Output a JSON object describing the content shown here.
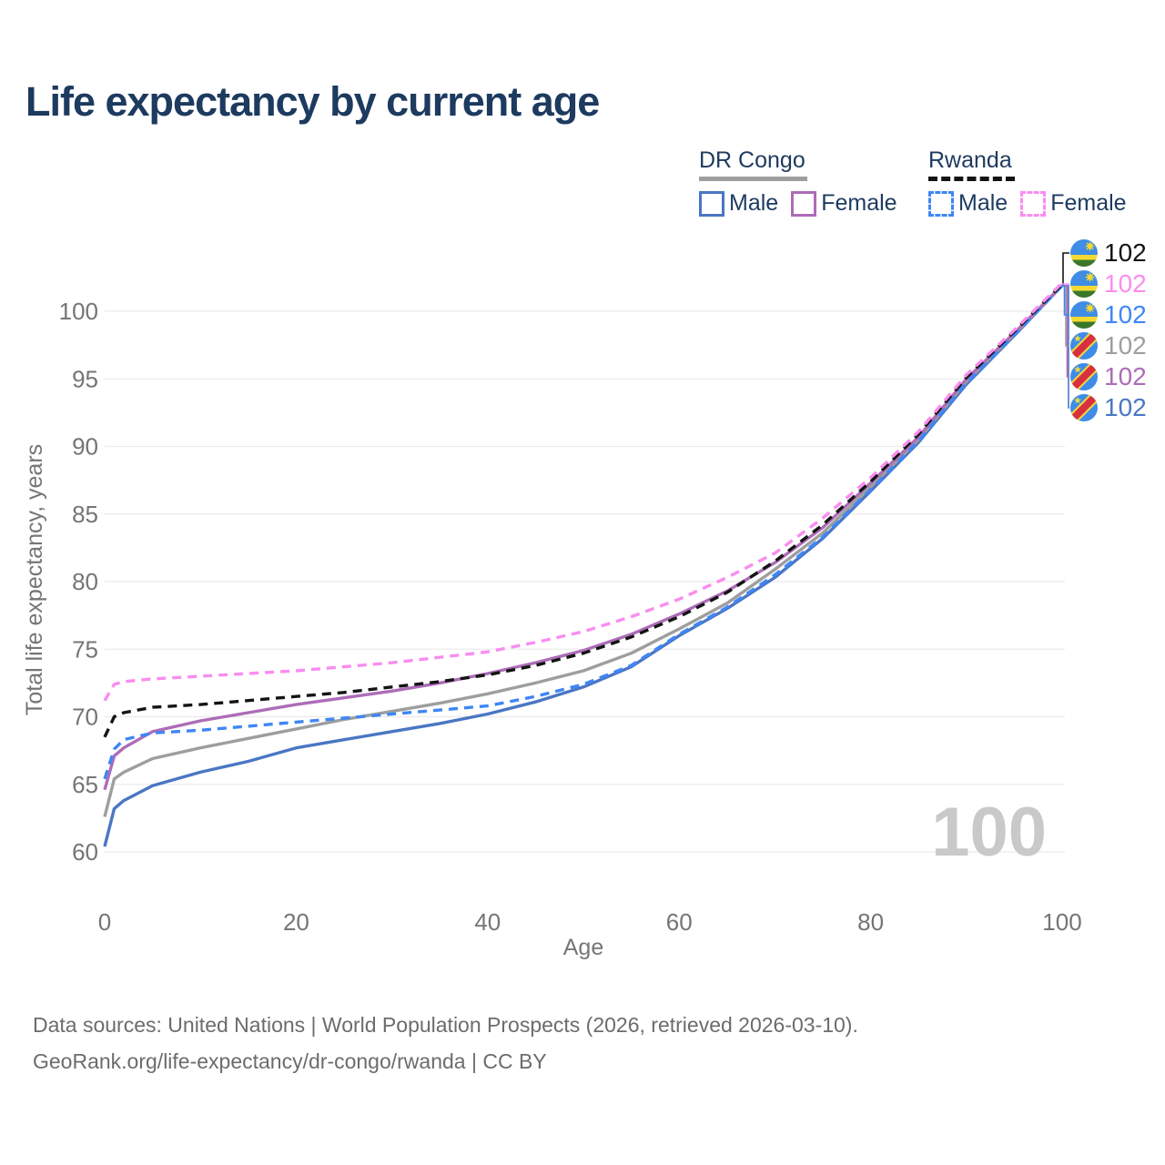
{
  "page": {
    "title": "Life expectancy by current age"
  },
  "colors": {
    "title_text": "#1d3a5f",
    "legend_text": "#1d3a5f",
    "axis_text": "#757575",
    "gridline": "#ebebeb",
    "watermark": "#c9c9c9",
    "footer_text": "#6c6c6c",
    "drc_male": "#4a76c4",
    "drc_female": "#ad6cb8",
    "drc_both": "#9e9e9e",
    "rwanda_male": "#3f86f5",
    "rwanda_female": "#f98df0",
    "rwanda_both": "#141414",
    "flag_rwanda": {
      "blue": "#3f8de5",
      "yellow": "#f5d933",
      "green": "#3a7728"
    },
    "flag_drc": {
      "blue": "#3e8ce8",
      "red": "#d8303f",
      "yellow": "#f3d83b"
    }
  },
  "legend": {
    "groups": [
      {
        "label": "DR Congo",
        "line_style": "solid",
        "line_color_key": "drc_both",
        "items": [
          {
            "label": "Male",
            "color_key": "drc_male",
            "style": "solid"
          },
          {
            "label": "Female",
            "color_key": "drc_female",
            "style": "solid"
          }
        ]
      },
      {
        "label": "Rwanda",
        "line_style": "dashed",
        "line_color_key": "rwanda_both",
        "items": [
          {
            "label": "Male",
            "color_key": "rwanda_male",
            "style": "dashed"
          },
          {
            "label": "Female",
            "color_key": "rwanda_female",
            "style": "dashed"
          }
        ]
      }
    ]
  },
  "chart_data": {
    "type": "line",
    "title": "Life expectancy by current age",
    "xlabel": "Age",
    "ylabel": "Total life expectancy, years",
    "grid": "horizontal",
    "legend_position": "top-right",
    "xlim": [
      0,
      100
    ],
    "ylim": [
      58.5,
      103
    ],
    "xticks": [
      0,
      20,
      40,
      60,
      80,
      100
    ],
    "yticks": [
      60,
      65,
      70,
      75,
      80,
      85,
      90,
      95,
      100
    ],
    "age_counter": "100",
    "x": [
      0,
      1,
      2,
      5,
      10,
      15,
      20,
      25,
      30,
      35,
      40,
      45,
      50,
      55,
      60,
      65,
      70,
      75,
      80,
      85,
      90,
      95,
      100
    ],
    "series": [
      {
        "name": "DR Congo Male",
        "country": "DR Congo",
        "sex": "Male",
        "color_key": "drc_male",
        "dashed": false,
        "flag": "drc",
        "label_row": 5,
        "end_label": "102",
        "values": [
          60.4,
          63.2,
          63.8,
          64.9,
          65.9,
          66.7,
          67.7,
          68.3,
          68.9,
          69.5,
          70.2,
          71.1,
          72.2,
          73.7,
          76.0,
          78.0,
          80.3,
          83.2,
          86.7,
          90.3,
          94.6,
          98.2,
          101.9
        ]
      },
      {
        "name": "DR Congo Both sexes",
        "country": "DR Congo",
        "sex": "Both",
        "color_key": "drc_both",
        "dashed": false,
        "flag": "drc",
        "label_row": 3,
        "end_label": "102",
        "values": [
          62.6,
          65.4,
          65.9,
          66.9,
          67.7,
          68.4,
          69.1,
          69.8,
          70.4,
          71.0,
          71.7,
          72.5,
          73.4,
          74.7,
          76.5,
          78.4,
          80.9,
          83.6,
          87.0,
          90.5,
          94.8,
          98.3,
          101.9
        ]
      },
      {
        "name": "DR Congo Female",
        "country": "DR Congo",
        "sex": "Female",
        "color_key": "drc_female",
        "dashed": false,
        "flag": "drc",
        "label_row": 4,
        "end_label": "102",
        "values": [
          64.6,
          67.1,
          67.7,
          68.9,
          69.7,
          70.3,
          70.9,
          71.4,
          71.9,
          72.5,
          73.2,
          74.0,
          74.9,
          76.1,
          77.6,
          79.3,
          81.4,
          84.0,
          87.3,
          90.7,
          95.0,
          98.4,
          101.9
        ]
      },
      {
        "name": "Rwanda Male",
        "country": "Rwanda",
        "sex": "Male",
        "color_key": "rwanda_male",
        "dashed": true,
        "flag": "rwanda",
        "label_row": 2,
        "end_label": "102",
        "values": [
          65.4,
          67.6,
          68.3,
          68.8,
          69.0,
          69.3,
          69.6,
          69.9,
          70.2,
          70.5,
          70.8,
          71.5,
          72.4,
          73.8,
          76.1,
          78.1,
          80.5,
          83.3,
          86.8,
          90.4,
          94.7,
          98.2,
          101.9
        ]
      },
      {
        "name": "Rwanda Both sexes",
        "country": "Rwanda",
        "sex": "Both",
        "color_key": "rwanda_both",
        "dashed": true,
        "flag": "rwanda",
        "label_row": 0,
        "end_label": "102",
        "values": [
          68.5,
          70.0,
          70.3,
          70.7,
          70.9,
          71.2,
          71.5,
          71.8,
          72.2,
          72.6,
          73.1,
          73.8,
          74.7,
          75.9,
          77.4,
          79.2,
          81.5,
          84.2,
          87.4,
          90.9,
          95.1,
          98.5,
          102.0
        ]
      },
      {
        "name": "Rwanda Female",
        "country": "Rwanda",
        "sex": "Female",
        "color_key": "rwanda_female",
        "dashed": true,
        "flag": "rwanda",
        "label_row": 1,
        "end_label": "102",
        "values": [
          71.2,
          72.4,
          72.6,
          72.8,
          73.0,
          73.2,
          73.4,
          73.7,
          74.0,
          74.4,
          74.8,
          75.5,
          76.3,
          77.4,
          78.7,
          80.3,
          82.1,
          84.7,
          87.7,
          91.1,
          95.3,
          98.6,
          102.1
        ]
      }
    ]
  },
  "footer": {
    "line1": "Data sources: United Nations | World Population Prospects (2026, retrieved 2026-03-10).",
    "line2": "GeoRank.org/life-expectancy/dr-congo/rwanda | CC BY"
  }
}
